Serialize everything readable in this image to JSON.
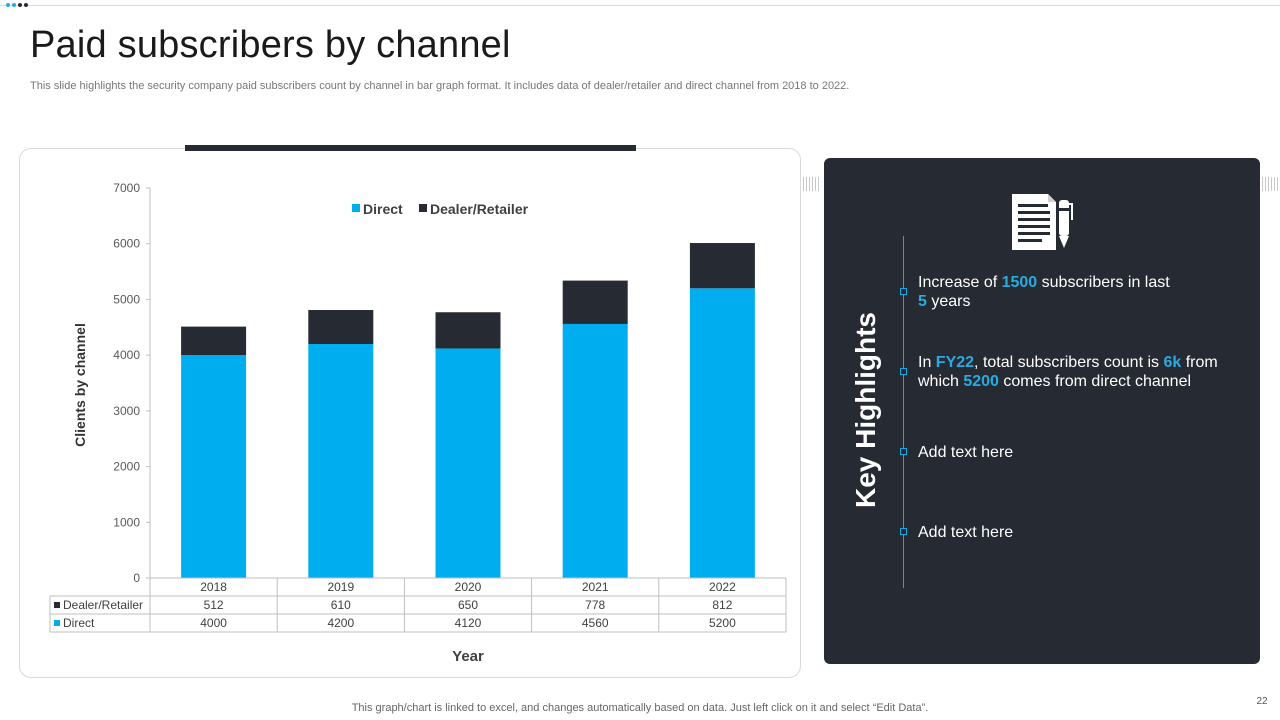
{
  "page": {
    "title": "Paid subscribers by channel",
    "subtitle": "This slide highlights the security company paid subscribers count by channel in bar graph format. It includes data of dealer/retailer and direct channel from 2018 to 2022.",
    "footer": "This graph/chart is linked to excel,  and changes automatically based on data. Just left click on it and select “Edit Data”.",
    "page_number": "22"
  },
  "colors": {
    "direct": "#00aeef",
    "dealer": "#262a33",
    "accent": "#29abe2",
    "panel": "#262a33"
  },
  "highlights": {
    "title": "Key Highlights",
    "items": [
      {
        "parts": [
          "Increase  of ",
          "1500",
          " subscribers in last ",
          "5",
          " years"
        ]
      },
      {
        "parts": [
          "In ",
          "FY22",
          ", total subscribers count is ",
          "6k",
          " from which ",
          "5200",
          " comes from direct channel"
        ]
      },
      {
        "text": "Add text here"
      },
      {
        "text": "Add text here"
      }
    ]
  },
  "chart_data": {
    "type": "bar",
    "stacked": true,
    "categories": [
      "2018",
      "2019",
      "2020",
      "2021",
      "2022"
    ],
    "series": [
      {
        "name": "Direct",
        "values": [
          4000,
          4200,
          4120,
          4560,
          5200
        ]
      },
      {
        "name": "Dealer/Retailer",
        "values": [
          512,
          610,
          650,
          778,
          812
        ]
      }
    ],
    "legend": [
      "Direct",
      "Dealer/Retailer"
    ],
    "legend_position": "top",
    "xlabel": "Year",
    "ylabel": "Clients by channel",
    "ylim": [
      0,
      7000
    ],
    "yticks": [
      0,
      1000,
      2000,
      3000,
      4000,
      5000,
      6000,
      7000
    ],
    "data_table": true,
    "grid": false
  }
}
